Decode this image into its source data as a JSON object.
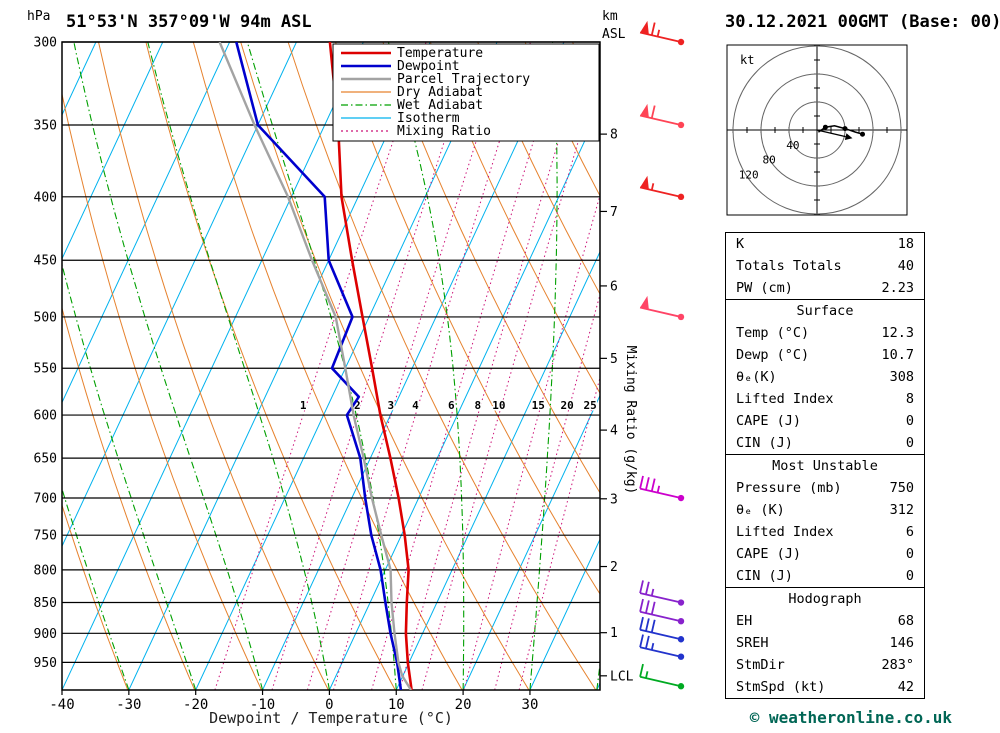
{
  "header": {
    "station_title": "51°53'N 357°09'W 94m ASL",
    "datetime_title": "30.12.2021 00GMT (Base: 00)"
  },
  "axes": {
    "pressure_unit": "hPa",
    "altitude_unit_line1": "km",
    "altitude_unit_line2": "ASL",
    "xlabel": "Dewpoint / Temperature (°C)",
    "mixing_ratio_label": "Mixing Ratio (g/kg)",
    "lcl_label": "LCL"
  },
  "legend": [
    {
      "label": "Temperature",
      "color": "#dd0000",
      "style": "solid"
    },
    {
      "label": "Dewpoint",
      "color": "#0000cd",
      "style": "solid"
    },
    {
      "label": "Parcel Trajectory",
      "color": "#a3a3a3",
      "style": "solid"
    },
    {
      "label": "Dry Adiabat",
      "color": "#e6822e",
      "style": "solid"
    },
    {
      "label": "Wet Adiabat",
      "color": "#00a000",
      "style": "dashdot"
    },
    {
      "label": "Isotherm",
      "color": "#00b2ee",
      "style": "solid"
    },
    {
      "label": "Mixing Ratio",
      "color": "#cc1177",
      "style": "dotted"
    }
  ],
  "chart_data": {
    "type": "line",
    "subtype": "skew-t log-p sounding",
    "title": "51°53'N 357°09'W 94m ASL",
    "xlabel": "Dewpoint / Temperature (°C)",
    "x_ticks_c": [
      -40,
      -30,
      -20,
      -10,
      0,
      10,
      20,
      30
    ],
    "x_range_c": [
      -40,
      40.5
    ],
    "pressure_ticks_hpa": [
      300,
      350,
      400,
      450,
      500,
      550,
      600,
      650,
      700,
      750,
      800,
      850,
      900,
      950
    ],
    "pressure_range_hpa": [
      300,
      1000
    ],
    "km_ticks": [
      {
        "label": "8",
        "p": 356
      },
      {
        "label": "7",
        "p": 411
      },
      {
        "label": "6",
        "p": 472
      },
      {
        "label": "5",
        "p": 540
      },
      {
        "label": "4",
        "p": 617
      },
      {
        "label": "3",
        "p": 701
      },
      {
        "label": "2",
        "p": 795
      },
      {
        "label": "1",
        "p": 899
      },
      {
        "label": "LCL",
        "p": 974
      }
    ],
    "mixing_ratio_gkg": [
      1,
      2,
      3,
      4,
      6,
      8,
      10,
      15,
      20,
      25
    ],
    "isotherm_step_c": 10,
    "dry_adiabat_step_k": 10,
    "wet_adiabat_step_c": 10,
    "series": [
      {
        "name": "Temperature",
        "color": "#dd0000",
        "points_p_t": [
          [
            300,
            -45
          ],
          [
            350,
            -38
          ],
          [
            400,
            -32.5
          ],
          [
            450,
            -26.5
          ],
          [
            500,
            -21
          ],
          [
            550,
            -16
          ],
          [
            600,
            -11.5
          ],
          [
            650,
            -7
          ],
          [
            700,
            -3
          ],
          [
            750,
            0.5
          ],
          [
            800,
            3.5
          ],
          [
            850,
            5.5
          ],
          [
            900,
            7.5
          ],
          [
            950,
            9.8
          ],
          [
            1000,
            12.3
          ]
        ]
      },
      {
        "name": "Dewpoint",
        "color": "#0000cd",
        "points_p_t": [
          [
            300,
            -59
          ],
          [
            350,
            -50
          ],
          [
            400,
            -35
          ],
          [
            450,
            -30
          ],
          [
            500,
            -22.5
          ],
          [
            550,
            -22
          ],
          [
            580,
            -16
          ],
          [
            600,
            -16.5
          ],
          [
            650,
            -11.5
          ],
          [
            700,
            -8
          ],
          [
            750,
            -4.5
          ],
          [
            800,
            -0.7
          ],
          [
            850,
            2.3
          ],
          [
            900,
            5.2
          ],
          [
            950,
            8.2
          ],
          [
            1000,
            10.7
          ]
        ]
      },
      {
        "name": "Parcel Trajectory",
        "color": "#a3a3a3",
        "points_p_t": [
          [
            300,
            -61.5
          ],
          [
            350,
            -50.5
          ],
          [
            400,
            -40.5
          ],
          [
            450,
            -32.5
          ],
          [
            500,
            -25
          ],
          [
            550,
            -20
          ],
          [
            600,
            -15.5
          ],
          [
            650,
            -11
          ],
          [
            700,
            -7
          ],
          [
            750,
            -3
          ],
          [
            800,
            0.8
          ],
          [
            850,
            3.2
          ],
          [
            900,
            5.8
          ],
          [
            950,
            8.4
          ],
          [
            974,
            9.9
          ],
          [
            1000,
            12.2
          ]
        ]
      }
    ],
    "wind_barbs": [
      {
        "p": 300,
        "speed_kt": 65,
        "color": "#ee2222"
      },
      {
        "p": 350,
        "speed_kt": 60,
        "color": "#ff4455"
      },
      {
        "p": 400,
        "speed_kt": 55,
        "color": "#ee2222"
      },
      {
        "p": 500,
        "speed_kt": 50,
        "color": "#ff4466"
      },
      {
        "p": 700,
        "speed_kt": 35,
        "color": "#cc00cc"
      },
      {
        "p": 850,
        "speed_kt": 25,
        "color": "#8822cc"
      },
      {
        "p": 880,
        "speed_kt": 30,
        "color": "#8822cc"
      },
      {
        "p": 910,
        "speed_kt": 30,
        "color": "#2233cc"
      },
      {
        "p": 940,
        "speed_kt": 25,
        "color": "#2233cc"
      },
      {
        "p": 993,
        "speed_kt": 15,
        "color": "#00aa22"
      }
    ],
    "hodograph": {
      "unit": "kt",
      "ring_labels_kt": [
        40,
        80,
        120
      ],
      "trace_uv_kt": [
        [
          2,
          -3
        ],
        [
          12,
          4
        ],
        [
          25,
          6
        ],
        [
          40,
          2
        ],
        [
          55,
          -3
        ],
        [
          65,
          -6
        ]
      ],
      "storm_motion": {
        "dir_deg": 283,
        "speed_kt": 42
      }
    }
  },
  "panels": [
    {
      "header": null,
      "rows": [
        [
          "K",
          "18"
        ],
        [
          "Totals Totals",
          "40"
        ],
        [
          "PW (cm)",
          "2.23"
        ]
      ]
    },
    {
      "header": "Surface",
      "rows": [
        [
          "Temp (°C)",
          "12.3"
        ],
        [
          "Dewp (°C)",
          "10.7"
        ],
        [
          "θₑ(K)",
          "308"
        ],
        [
          "Lifted Index",
          "8"
        ],
        [
          "CAPE (J)",
          "0"
        ],
        [
          "CIN (J)",
          "0"
        ]
      ]
    },
    {
      "header": "Most Unstable",
      "rows": [
        [
          "Pressure (mb)",
          "750"
        ],
        [
          "θₑ (K)",
          "312"
        ],
        [
          "Lifted Index",
          "6"
        ],
        [
          "CAPE (J)",
          "0"
        ],
        [
          "CIN (J)",
          "0"
        ]
      ]
    },
    {
      "header": "Hodograph",
      "rows": [
        [
          "EH",
          "68"
        ],
        [
          "SREH",
          "146"
        ],
        [
          "StmDir",
          "283°"
        ],
        [
          "StmSpd (kt)",
          "42"
        ]
      ]
    }
  ],
  "footer": {
    "copyright": "© weatheronline.co.uk"
  }
}
